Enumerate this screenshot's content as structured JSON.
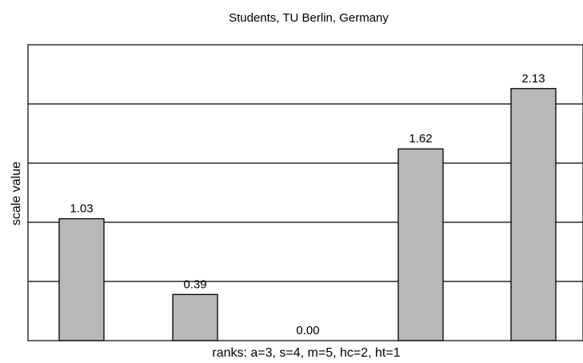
{
  "chart_data": {
    "type": "bar",
    "title": "Students, TU Berlin, Germany",
    "xlabel": "ranks: a=3, s=4, m=5, hc=2, ht=1",
    "ylabel": "scale value",
    "categories": [
      "",
      "",
      "",
      "",
      ""
    ],
    "values": [
      1.03,
      0.39,
      0.0,
      1.62,
      2.13
    ],
    "data_labels": [
      "1.03",
      "0.39",
      "0.00",
      "1.62",
      "2.13"
    ],
    "ylim": [
      0,
      2.5
    ],
    "gridlines": [
      0.5,
      1.0,
      1.5,
      2.0
    ],
    "grid": true,
    "bar_color": "#b8b8b8"
  }
}
